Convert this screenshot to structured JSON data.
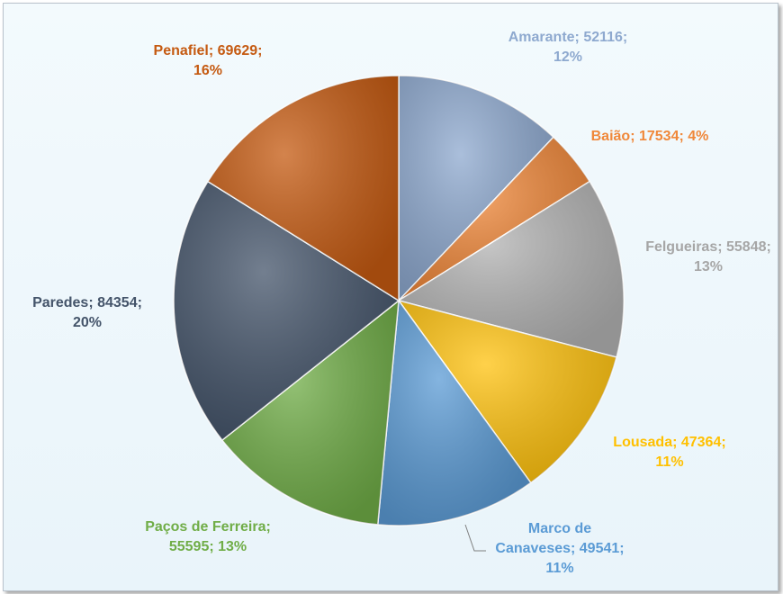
{
  "chart_data": {
    "type": "pie",
    "title": "",
    "slices": [
      {
        "label": "Amarante",
        "value": 52116,
        "percent": "12%",
        "color": "#8ea9cf",
        "text": [
          "Amarante; 52116;",
          "12%"
        ]
      },
      {
        "label": "Baião",
        "value": 17534,
        "percent": "4%",
        "color": "#f0883a",
        "text": [
          "Baião; 17534; 4%"
        ]
      },
      {
        "label": "Felgueiras",
        "value": 55848,
        "percent": "13%",
        "color": "#b3b3b3",
        "text": [
          "Felgueiras; 55848;",
          "13%"
        ]
      },
      {
        "label": "Lousada",
        "value": 47364,
        "percent": "11%",
        "color": "#ffc20e",
        "text": [
          "Lousada; 47364;",
          "11%"
        ]
      },
      {
        "label": "Marco de Canaveses",
        "value": 49541,
        "percent": "11%",
        "color": "#5b9bd5",
        "text": [
          "Marco de",
          "Canaveses; 49541;",
          "11%"
        ]
      },
      {
        "label": "Paços de Ferreira",
        "value": 55595,
        "percent": "13%",
        "color": "#70ad47",
        "text": [
          "Paços de Ferreira;",
          "55595; 13%"
        ]
      },
      {
        "label": "Paredes",
        "value": 84354,
        "percent": "20%",
        "color": "#44546a",
        "text": [
          "Paredes; 84354;",
          "20%"
        ]
      },
      {
        "label": "Penafiel",
        "value": 69629,
        "percent": "16%",
        "color": "#c55a11",
        "text": [
          "Penafiel; 69629;",
          "16%"
        ]
      }
    ],
    "label_colors": [
      "#8ea9cf",
      "#f0883a",
      "#a6a6a6",
      "#ffc000",
      "#5b9bd5",
      "#70ad47",
      "#44546a",
      "#c55a11"
    ],
    "legend": "none"
  }
}
